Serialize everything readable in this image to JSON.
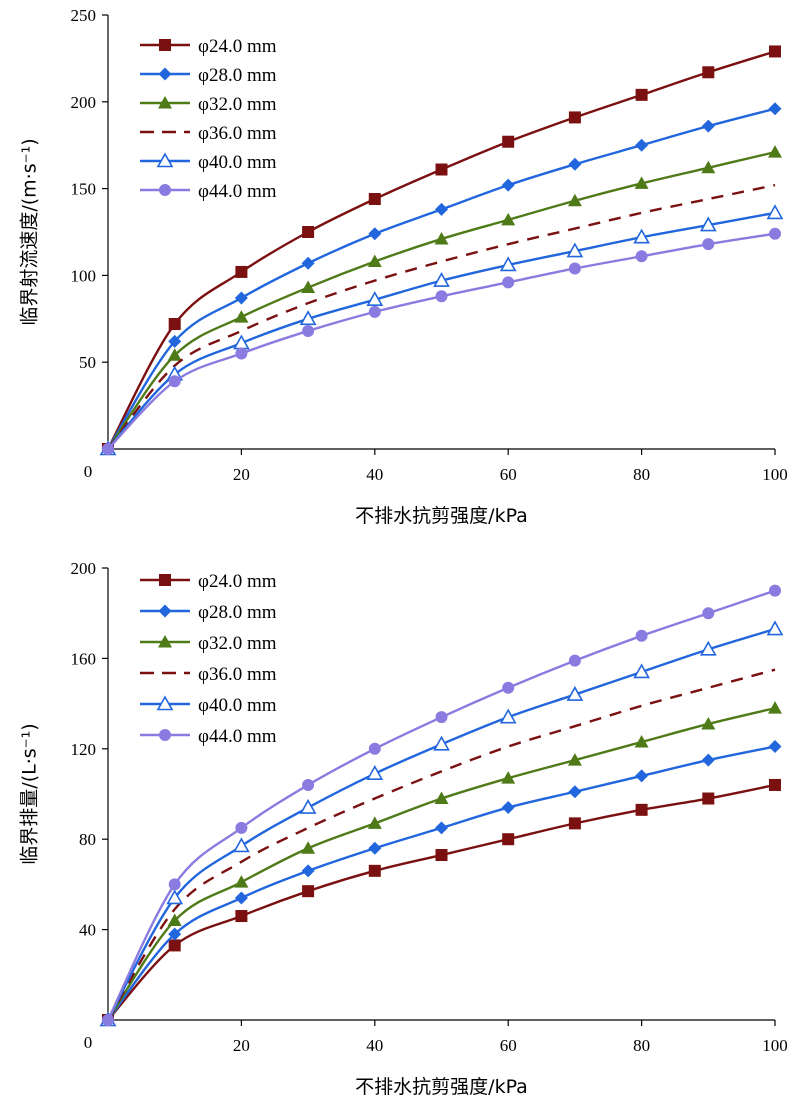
{
  "chart_data": [
    {
      "type": "line",
      "xlabel": "不排水抗剪强度/kPa",
      "ylabel": "临界射流速度/(m·s⁻¹)",
      "xlim": [
        0,
        100
      ],
      "ylim": [
        0,
        250
      ],
      "xticks": [
        20,
        40,
        60,
        80,
        100
      ],
      "yticks": [
        50,
        100,
        150,
        200,
        250
      ],
      "origin_label": "0",
      "grid": false,
      "legend_position": "top-left",
      "x": [
        0,
        10,
        20,
        30,
        40,
        50,
        60,
        70,
        80,
        90,
        100
      ],
      "series": [
        {
          "name": "φ24.0 mm",
          "color": "#7B1010",
          "marker": "square",
          "dash": false,
          "values": [
            0,
            72,
            102,
            125,
            144,
            161,
            177,
            191,
            204,
            217,
            229
          ]
        },
        {
          "name": "φ28.0 mm",
          "color": "#2266DD",
          "marker": "diamond",
          "dash": false,
          "values": [
            0,
            62,
            87,
            107,
            124,
            138,
            152,
            164,
            175,
            186,
            196
          ]
        },
        {
          "name": "φ32.0 mm",
          "color": "#4F7A18",
          "marker": "triangle",
          "dash": false,
          "values": [
            0,
            54,
            76,
            93,
            108,
            121,
            132,
            143,
            153,
            162,
            171
          ]
        },
        {
          "name": "φ36.0 mm",
          "color": "#7B1010",
          "marker": "none",
          "dash": true,
          "values": [
            0,
            48,
            68,
            84,
            97,
            108,
            118,
            127,
            136,
            144,
            152
          ]
        },
        {
          "name": "φ40.0 mm",
          "color": "#2266DD",
          "marker": "triangle-open",
          "dash": false,
          "values": [
            0,
            43,
            61,
            75,
            86,
            97,
            106,
            114,
            122,
            129,
            136
          ]
        },
        {
          "name": "φ44.0 mm",
          "color": "#8A7BE0",
          "marker": "circle",
          "dash": false,
          "values": [
            0,
            39,
            55,
            68,
            79,
            88,
            96,
            104,
            111,
            118,
            124
          ]
        }
      ]
    },
    {
      "type": "line",
      "xlabel": "不排水抗剪强度/kPa",
      "ylabel": "临界排量/(L·s⁻¹)",
      "xlim": [
        0,
        100
      ],
      "ylim": [
        0,
        200
      ],
      "xticks": [
        20,
        40,
        60,
        80,
        100
      ],
      "yticks": [
        40,
        80,
        120,
        160,
        200
      ],
      "origin_label": "0",
      "grid": false,
      "legend_position": "top-left",
      "x": [
        0,
        10,
        20,
        30,
        40,
        50,
        60,
        70,
        80,
        90,
        100
      ],
      "series": [
        {
          "name": "φ24.0 mm",
          "color": "#7B1010",
          "marker": "square",
          "dash": false,
          "values": [
            0,
            33,
            46,
            57,
            66,
            73,
            80,
            87,
            93,
            98,
            104
          ]
        },
        {
          "name": "φ28.0 mm",
          "color": "#2266DD",
          "marker": "diamond",
          "dash": false,
          "values": [
            0,
            38,
            54,
            66,
            76,
            85,
            94,
            101,
            108,
            115,
            121
          ]
        },
        {
          "name": "φ32.0 mm",
          "color": "#4F7A18",
          "marker": "triangle",
          "dash": false,
          "values": [
            0,
            44,
            61,
            76,
            87,
            98,
            107,
            115,
            123,
            131,
            138
          ]
        },
        {
          "name": "φ36.0 mm",
          "color": "#7B1010",
          "marker": "none",
          "dash": true,
          "values": [
            0,
            49,
            70,
            85,
            98,
            110,
            121,
            130,
            139,
            147,
            155
          ]
        },
        {
          "name": "φ40.0 mm",
          "color": "#2266DD",
          "marker": "triangle-open",
          "dash": false,
          "values": [
            0,
            54,
            77,
            94,
            109,
            122,
            134,
            144,
            154,
            164,
            173
          ]
        },
        {
          "name": "φ44.0 mm",
          "color": "#8A7BE0",
          "marker": "circle",
          "dash": false,
          "values": [
            0,
            60,
            85,
            104,
            120,
            134,
            147,
            159,
            170,
            180,
            190
          ]
        }
      ]
    }
  ]
}
